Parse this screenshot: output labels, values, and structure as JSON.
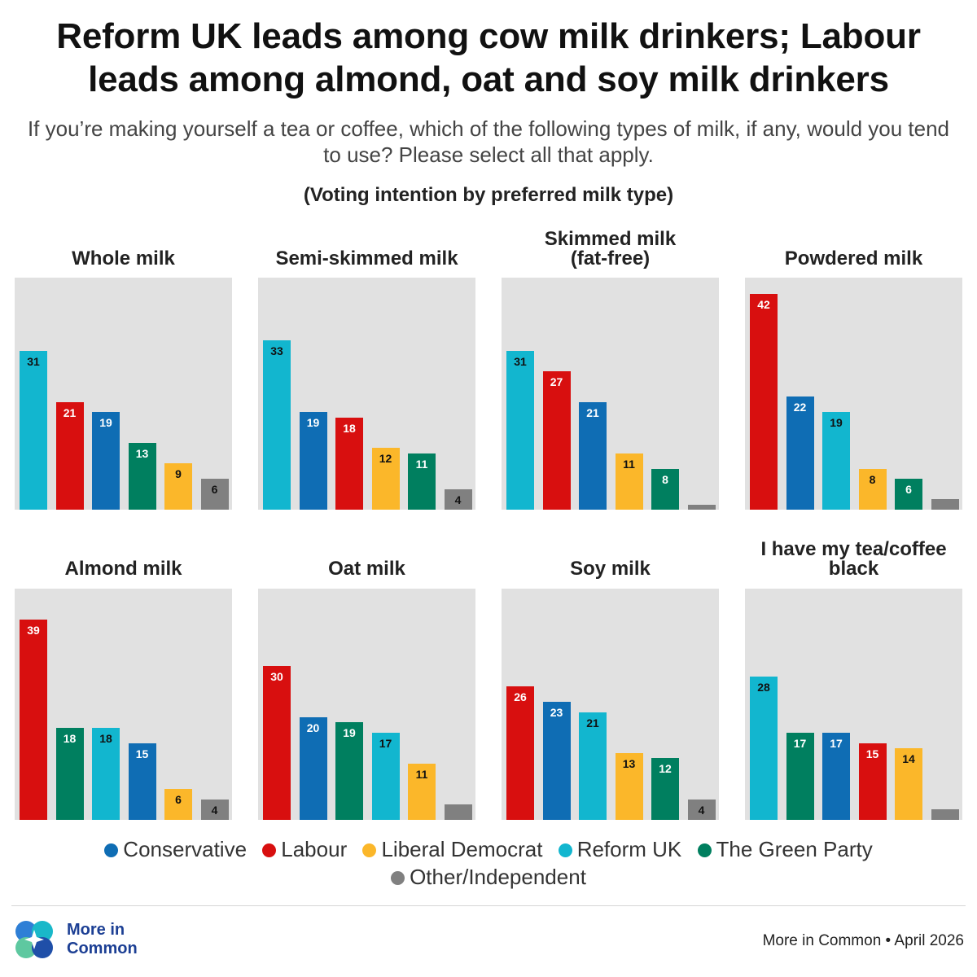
{
  "title_line1": "Reform UK leads among cow milk drinkers; Labour",
  "title_line2": "leads among almond, oat and soy milk drinkers",
  "subtitle": "If you’re making yourself a tea or coffee, which of the following types of milk, if any, would you tend to use? Please select all that apply.",
  "note": "(Voting intention by preferred milk type)",
  "legend": [
    {
      "label": "Conservative",
      "color": "#0f6db4"
    },
    {
      "label": "Labour",
      "color": "#d80f0f"
    },
    {
      "label": "Liberal Democrat",
      "color": "#fbb72a"
    },
    {
      "label": "Reform UK",
      "color": "#12b6cf"
    },
    {
      "label": "The Green Party",
      "color": "#007f5f"
    },
    {
      "label": "Other/Independent",
      "color": "#808080"
    }
  ],
  "brand": {
    "line1": "More in",
    "line2": "Common"
  },
  "footer": "More in Common • April 2026",
  "chart_data": [
    {
      "type": "bar",
      "title": "Whole milk",
      "ylim": [
        0,
        45
      ],
      "categories": [
        "Reform UK",
        "Labour",
        "Conservative",
        "The Green Party",
        "Liberal Democrat",
        "Other/Independent"
      ],
      "values": [
        31,
        21,
        19,
        13,
        9,
        6
      ],
      "labels": [
        "31",
        "21",
        "19",
        "13",
        "9",
        "6"
      ]
    },
    {
      "type": "bar",
      "title": "Semi-skimmed milk",
      "ylim": [
        0,
        45
      ],
      "categories": [
        "Reform UK",
        "Conservative",
        "Labour",
        "Liberal Democrat",
        "The Green Party",
        "Other/Independent"
      ],
      "values": [
        33,
        19,
        18,
        12,
        11,
        4
      ],
      "labels": [
        "33",
        "19",
        "18",
        "12",
        "11",
        "4"
      ]
    },
    {
      "type": "bar",
      "title": "Skimmed milk (fat-free)",
      "ylim": [
        0,
        45
      ],
      "categories": [
        "Reform UK",
        "Labour",
        "Conservative",
        "Liberal Democrat",
        "The Green Party",
        "Other/Independent"
      ],
      "values": [
        31,
        27,
        21,
        11,
        8,
        1
      ],
      "labels": [
        "31",
        "27",
        "21",
        "11",
        "8",
        ""
      ]
    },
    {
      "type": "bar",
      "title": "Powdered milk",
      "ylim": [
        0,
        45
      ],
      "categories": [
        "Labour",
        "Conservative",
        "Reform UK",
        "Liberal Democrat",
        "The Green Party",
        "Other/Independent"
      ],
      "values": [
        42,
        22,
        19,
        8,
        6,
        2
      ],
      "labels": [
        "42",
        "22",
        "19",
        "8",
        "6",
        ""
      ]
    },
    {
      "type": "bar",
      "title": "Almond milk",
      "ylim": [
        0,
        45
      ],
      "categories": [
        "Labour",
        "The Green Party",
        "Reform UK",
        "Conservative",
        "Liberal Democrat",
        "Other/Independent"
      ],
      "values": [
        39,
        18,
        18,
        15,
        6,
        4
      ],
      "labels": [
        "39",
        "18",
        "18",
        "15",
        "6",
        "4"
      ]
    },
    {
      "type": "bar",
      "title": "Oat milk",
      "ylim": [
        0,
        45
      ],
      "categories": [
        "Labour",
        "Conservative",
        "The Green Party",
        "Reform UK",
        "Liberal Democrat",
        "Other/Independent"
      ],
      "values": [
        30,
        20,
        19,
        17,
        11,
        3
      ],
      "labels": [
        "30",
        "20",
        "19",
        "17",
        "11",
        ""
      ]
    },
    {
      "type": "bar",
      "title": "Soy milk",
      "ylim": [
        0,
        45
      ],
      "categories": [
        "Labour",
        "Conservative",
        "Reform UK",
        "Liberal Democrat",
        "The Green Party",
        "Other/Independent"
      ],
      "values": [
        26,
        23,
        21,
        13,
        12,
        4
      ],
      "labels": [
        "26",
        "23",
        "21",
        "13",
        "12",
        "4"
      ]
    },
    {
      "type": "bar",
      "title": "I have my tea/coffee black",
      "ylim": [
        0,
        45
      ],
      "categories": [
        "Reform UK",
        "The Green Party",
        "Conservative",
        "Labour",
        "Liberal Democrat",
        "Other/Independent"
      ],
      "values": [
        28,
        17,
        17,
        15,
        14,
        2
      ],
      "labels": [
        "28",
        "17",
        "17",
        "15",
        "14",
        ""
      ]
    }
  ]
}
